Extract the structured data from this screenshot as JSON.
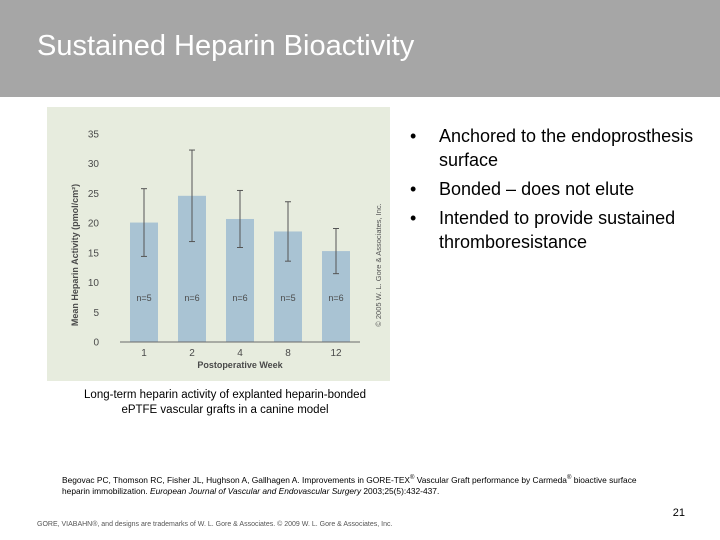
{
  "slide": {
    "title": "Sustained Heparin Bioactivity",
    "bullets": [
      "Anchored to the endoprosthesis surface",
      "Bonded – does not elute",
      "Intended to provide sustained thromboresistance"
    ],
    "bullet_symbol": "•",
    "caption": "Long-term heparin activity of explanted heparin-bonded ePTFE vascular grafts in a canine model",
    "reference": {
      "authors_pre": "Begovac PC, Thomson RC, Fisher JL, Hughson A, Gallhagen A. Improvements in GORE-TEX",
      "reg1": "®",
      "mid": " Vascular Graft performance by Carmeda",
      "reg2": "®",
      "tail": " bioactive surface heparin immobilization. ",
      "journal": "European Journal of Vascular and Endovascular Surgery",
      "citation": " 2003;25(5):432-437."
    },
    "page_number": "21",
    "footer": "GORE, VIABAHN®, and designs are trademarks of W. L. Gore & Associates. © 2009 W. L. Gore & Associates, Inc."
  },
  "colors": {
    "header_bg": "#a6a6a6",
    "chart_bg": "#e7ecde",
    "bar_fill": "#a9c3d3",
    "error_bar": "#555555",
    "axis_text": "#4a4a4a"
  },
  "chart_data": {
    "type": "bar",
    "categories": [
      "1",
      "2",
      "4",
      "8",
      "12"
    ],
    "values": [
      20.1,
      24.6,
      20.7,
      18.6,
      15.3
    ],
    "error_low": [
      14.4,
      16.9,
      15.9,
      13.6,
      11.5
    ],
    "error_high": [
      25.8,
      32.3,
      25.5,
      23.6,
      19.1
    ],
    "bar_labels": [
      "n=5",
      "n=6",
      "n=6",
      "n=5",
      "n=6"
    ],
    "xlabel": "Postoperative Week",
    "ylabel": "Mean Heparin Activity (pmol/cm²)",
    "ylim": [
      0,
      35
    ],
    "yticks": [
      0,
      5,
      10,
      15,
      20,
      25,
      30,
      35
    ],
    "copyright": "© 2005 W. L. Gore & Associates, Inc.",
    "grid": false
  }
}
